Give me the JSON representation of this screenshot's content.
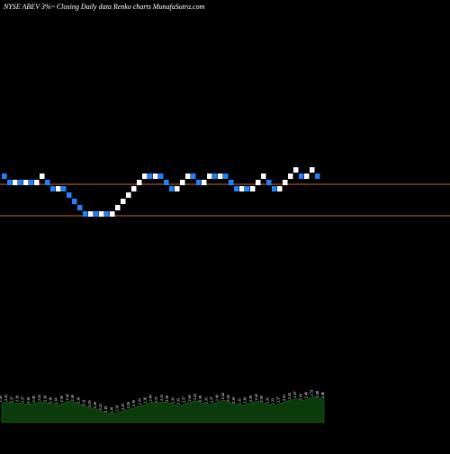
{
  "title": "NYSE ABEV 3%~  Closing Daily data  Renko  charts MunafaSutra.com",
  "chart_data": [
    {
      "type": "renko",
      "title": "NYSE ABEV 3%~  Closing Daily data  Renko  charts MunafaSutra.com",
      "brick_size_pct": 3,
      "reference_lines": [
        2.5,
        2.35
      ],
      "up_color": "#ffffff",
      "down_color": "#1e7fff",
      "line_color": "#c0652b",
      "bricks": [
        {
          "dir": "down",
          "low": 2.35,
          "high": 2.42
        },
        {
          "dir": "down",
          "low": 2.28,
          "high": 2.35
        },
        {
          "dir": "up",
          "low": 2.28,
          "high": 2.35
        },
        {
          "dir": "down",
          "low": 2.28,
          "high": 2.35
        },
        {
          "dir": "up",
          "low": 2.28,
          "high": 2.35
        },
        {
          "dir": "down",
          "low": 2.28,
          "high": 2.35
        },
        {
          "dir": "up",
          "low": 2.28,
          "high": 2.35
        },
        {
          "dir": "up",
          "low": 2.35,
          "high": 2.42
        },
        {
          "dir": "down",
          "low": 2.28,
          "high": 2.35
        },
        {
          "dir": "down",
          "low": 2.21,
          "high": 2.28
        },
        {
          "dir": "up",
          "low": 2.21,
          "high": 2.28
        },
        {
          "dir": "down",
          "low": 2.21,
          "high": 2.28
        },
        {
          "dir": "down",
          "low": 2.14,
          "high": 2.21
        },
        {
          "dir": "down",
          "low": 2.07,
          "high": 2.14
        },
        {
          "dir": "down",
          "low": 2.01,
          "high": 2.07
        },
        {
          "dir": "down",
          "low": 1.95,
          "high": 2.01
        },
        {
          "dir": "up",
          "low": 1.95,
          "high": 2.01
        },
        {
          "dir": "down",
          "low": 1.95,
          "high": 2.01
        },
        {
          "dir": "up",
          "low": 1.95,
          "high": 2.01
        },
        {
          "dir": "down",
          "low": 1.95,
          "high": 2.01
        },
        {
          "dir": "up",
          "low": 1.95,
          "high": 2.01
        },
        {
          "dir": "up",
          "low": 2.01,
          "high": 2.07
        },
        {
          "dir": "up",
          "low": 2.07,
          "high": 2.14
        },
        {
          "dir": "up",
          "low": 2.14,
          "high": 2.21
        },
        {
          "dir": "up",
          "low": 2.21,
          "high": 2.28
        },
        {
          "dir": "up",
          "low": 2.28,
          "high": 2.35
        },
        {
          "dir": "up",
          "low": 2.35,
          "high": 2.42
        },
        {
          "dir": "down",
          "low": 2.35,
          "high": 2.42
        },
        {
          "dir": "up",
          "low": 2.35,
          "high": 2.42
        },
        {
          "dir": "down",
          "low": 2.35,
          "high": 2.42
        },
        {
          "dir": "down",
          "low": 2.28,
          "high": 2.35
        },
        {
          "dir": "down",
          "low": 2.21,
          "high": 2.28
        },
        {
          "dir": "up",
          "low": 2.21,
          "high": 2.28
        },
        {
          "dir": "up",
          "low": 2.28,
          "high": 2.35
        },
        {
          "dir": "up",
          "low": 2.35,
          "high": 2.42
        },
        {
          "dir": "down",
          "low": 2.35,
          "high": 2.42
        },
        {
          "dir": "down",
          "low": 2.28,
          "high": 2.35
        },
        {
          "dir": "up",
          "low": 2.28,
          "high": 2.35
        },
        {
          "dir": "up",
          "low": 2.35,
          "high": 2.42
        },
        {
          "dir": "down",
          "low": 2.35,
          "high": 2.42
        },
        {
          "dir": "up",
          "low": 2.35,
          "high": 2.42
        },
        {
          "dir": "down",
          "low": 2.35,
          "high": 2.42
        },
        {
          "dir": "down",
          "low": 2.28,
          "high": 2.35
        },
        {
          "dir": "down",
          "low": 2.21,
          "high": 2.28
        },
        {
          "dir": "up",
          "low": 2.21,
          "high": 2.28
        },
        {
          "dir": "down",
          "low": 2.21,
          "high": 2.28
        },
        {
          "dir": "up",
          "low": 2.21,
          "high": 2.28
        },
        {
          "dir": "up",
          "low": 2.28,
          "high": 2.35
        },
        {
          "dir": "up",
          "low": 2.35,
          "high": 2.42
        },
        {
          "dir": "down",
          "low": 2.28,
          "high": 2.35
        },
        {
          "dir": "down",
          "low": 2.21,
          "high": 2.28
        },
        {
          "dir": "up",
          "low": 2.21,
          "high": 2.28
        },
        {
          "dir": "up",
          "low": 2.28,
          "high": 2.35
        },
        {
          "dir": "up",
          "low": 2.35,
          "high": 2.42
        },
        {
          "dir": "up",
          "low": 2.42,
          "high": 2.5
        },
        {
          "dir": "down",
          "low": 2.35,
          "high": 2.42
        },
        {
          "dir": "up",
          "low": 2.35,
          "high": 2.42
        },
        {
          "dir": "up",
          "low": 2.42,
          "high": 2.5
        },
        {
          "dir": "down",
          "low": 2.35,
          "high": 2.42
        }
      ],
      "volume_labels": [
        "2.38",
        "2.41",
        "2.37",
        "2.39",
        "2.37",
        "2.36",
        "2.38",
        "2.41",
        "2.39",
        "2.36",
        "2.34",
        "2.38",
        "2.42",
        "2.40",
        "2.36",
        "2.31",
        "2.29",
        "2.26",
        "2.22",
        "2.18",
        "2.16",
        "2.19",
        "2.23",
        "2.26",
        "2.30",
        "2.33",
        "2.36",
        "2.40",
        "2.37",
        "2.41",
        "2.39",
        "2.35",
        "2.33",
        "2.37",
        "2.40",
        "2.43",
        "2.39",
        "2.35",
        "2.37",
        "2.40",
        "2.44",
        "2.40",
        "2.36",
        "2.33",
        "2.36",
        "2.39",
        "2.42",
        "2.38",
        "2.35",
        "2.33",
        "2.37",
        "2.41",
        "2.44",
        "2.47",
        "2.43",
        "2.46",
        "2.51",
        "2.48",
        "2.46"
      ]
    }
  ]
}
